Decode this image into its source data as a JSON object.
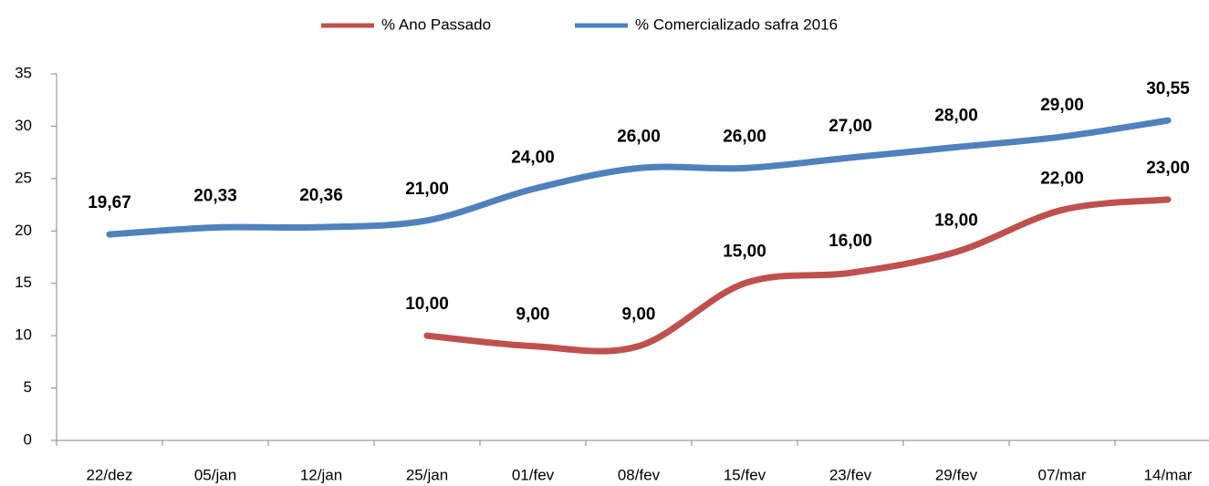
{
  "chart_data": {
    "type": "line",
    "categories": [
      "22/dez",
      "05/jan",
      "12/jan",
      "25/jan",
      "01/fev",
      "08/fev",
      "15/fev",
      "23/fev",
      "29/fev",
      "07/mar",
      "14/mar"
    ],
    "series": [
      {
        "name": "% Ano Passado",
        "color": "#c0504d",
        "values": [
          null,
          null,
          null,
          10,
          9,
          9,
          15,
          16,
          18,
          22,
          23
        ],
        "value_labels": [
          null,
          null,
          null,
          "10,00",
          "9,00",
          "9,00",
          "15,00",
          "16,00",
          "18,00",
          "22,00",
          "23,00"
        ]
      },
      {
        "name": "% Comercializado safra 2016",
        "color": "#4f81bd",
        "values": [
          19.67,
          20.33,
          20.36,
          21,
          24,
          26,
          26,
          27,
          28,
          29,
          30.55
        ],
        "value_labels": [
          "19,67",
          "20,33",
          "20,36",
          "21,00",
          "24,00",
          "26,00",
          "26,00",
          "27,00",
          "28,00",
          "29,00",
          "30,55"
        ]
      }
    ],
    "ylim": [
      0,
      35
    ],
    "yticks": [
      0,
      5,
      10,
      15,
      20,
      25,
      30,
      35
    ],
    "grid": false,
    "legend": "top"
  }
}
